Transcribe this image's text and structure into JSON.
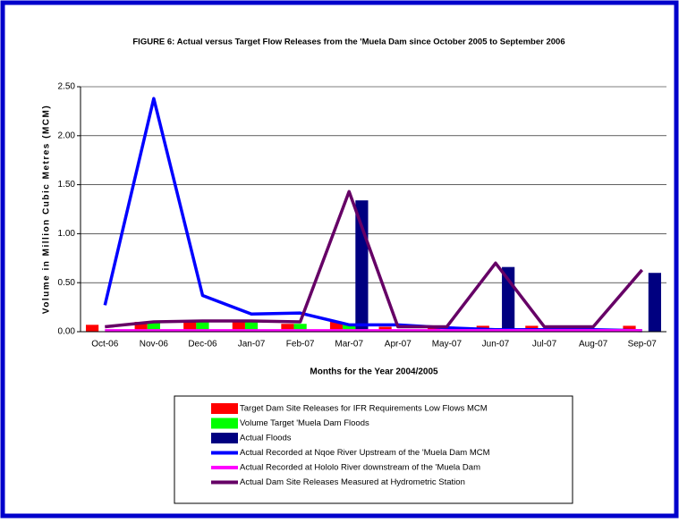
{
  "chart_data": {
    "type": "combo",
    "title": "FIGURE 6: Actual versus Target Flow Releases from the 'Muela Dam since October 2005 to September 2006",
    "x_label": "Months for the Year 2004/2005",
    "y_label": "Volume in Million Cubic Metres (MCM)",
    "categories": [
      "Oct-06",
      "Nov-06",
      "Dec-06",
      "Jan-07",
      "Feb-07",
      "Mar-07",
      "Apr-07",
      "May-07",
      "Jun-07",
      "Jul-07",
      "Aug-07",
      "Sep-07"
    ],
    "ylim": [
      0,
      2.5
    ],
    "yticks": [
      {
        "value": 0,
        "label": "0.00"
      },
      {
        "value": 0.5,
        "label": "0.50"
      },
      {
        "value": 1,
        "label": "1.00"
      },
      {
        "value": 1.5,
        "label": "1.50"
      },
      {
        "value": 2,
        "label": "2.00"
      },
      {
        "value": 2.5,
        "label": "2.50"
      }
    ],
    "grid": true,
    "series": [
      {
        "name": "Target Dam Site Releases for IFR Requirements Low Flows MCM",
        "style": "bar",
        "color": "#ff0000",
        "values": [
          0.07,
          0.1,
          0.1,
          0.1,
          0.08,
          0.1,
          0.05,
          0.05,
          0.06,
          0.06,
          0.05,
          0.06
        ]
      },
      {
        "name": "Volume Target 'Muela Dam Floods",
        "style": "bar",
        "color": "#00ff00",
        "values": [
          0,
          0.1,
          0.1,
          0.1,
          0.08,
          0.07,
          0,
          0,
          0,
          0,
          0,
          0
        ]
      },
      {
        "name": "Actual Floods",
        "style": "bar",
        "color": "#000080",
        "values": [
          0,
          0,
          0,
          0,
          0,
          1.34,
          0,
          0,
          0.66,
          0,
          0,
          0.6
        ]
      },
      {
        "name": "Actual Recorded at Nqoe River Upstream of the 'Muela Dam MCM",
        "style": "line",
        "color": "#0000ff",
        "values": [
          0.27,
          2.38,
          0.37,
          0.18,
          0.19,
          0.07,
          0.07,
          0.04,
          0.02,
          0.02,
          0.02,
          0.01
        ]
      },
      {
        "name": "Actual Recorded at Hololo River downstream of the 'Muela Dam",
        "style": "line",
        "color": "#ff00ff",
        "values": [
          0.01,
          0.01,
          0.01,
          0.01,
          0.01,
          0.01,
          0.01,
          0.01,
          0.01,
          0.01,
          0.01,
          0.01
        ]
      },
      {
        "name": "Actual Dam Site Releases Measured at Hydrometric Station",
        "style": "line",
        "color": "#660066",
        "values": [
          0.05,
          0.1,
          0.11,
          0.11,
          0.1,
          1.43,
          0.05,
          0.05,
          0.7,
          0.05,
          0.05,
          0.63
        ]
      }
    ]
  }
}
